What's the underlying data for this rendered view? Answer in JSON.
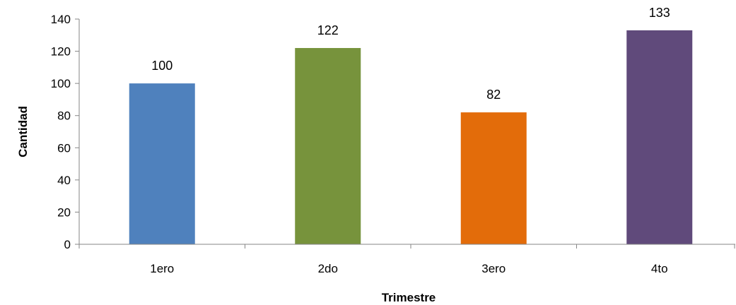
{
  "chart_data": {
    "type": "bar",
    "categories": [
      "1ero",
      "2do",
      "3ero",
      "4to"
    ],
    "values": [
      100,
      122,
      82,
      133
    ],
    "colors": [
      "#4f81bd",
      "#77933c",
      "#e36c0a",
      "#604a7b"
    ],
    "xlabel": "Trimestre",
    "ylabel": "Cantidad",
    "ylim": [
      0,
      140
    ],
    "yticks": [
      "0",
      "20",
      "40",
      "60",
      "80",
      "100",
      "120",
      "140"
    ],
    "grid": false,
    "legend": "none"
  }
}
